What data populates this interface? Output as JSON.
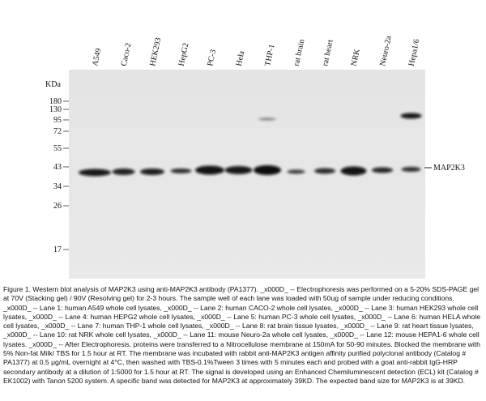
{
  "lanes": [
    "A549",
    "Caco-2",
    "HEK293",
    "HepG2",
    "PC-3",
    "Hela",
    "THP-1",
    "rat brain",
    "rat heart",
    "NRK",
    "Neuro-2a",
    "Hepa1/6"
  ],
  "unit": "KDa",
  "markers": [
    "180",
    "130",
    "95",
    "72",
    "55",
    "43",
    "34",
    "26",
    "17"
  ],
  "band_label": "MAP2K3",
  "caption": "Figure 1. Western blot analysis of MAP2K3 using anti-MAP2K3 antibody (PA1377). _x000D_ -- Electrophoresis was performed on a 5-20% SDS-PAGE gel at 70V (Stacking gel) / 90V (Resolving gel) for 2-3 hours. The sample well of each lane was loaded with 50ug of sample under reducing conditions. _x000D_ -- Lane 1: human A549 whole cell lysates, _x000D_ -- Lane 2: human CACO-2 whole cell lysates, _x000D_ -- Lane 3: human HEK293 whole cell lysates, _x000D_ -- Lane 4: human HEPG2 whole cell lysates, _x000D_ -- Lane 5: human PC-3 whole cell lysates, _x000D_ -- Lane 6: human HELA whole cell lysates, _x000D_ -- Lane 7: human THP-1 whole cell lysates, _x000D_ -- Lane 8: rat brain tissue lysates, _x000D_ -- Lane 9: rat heart tissue lysates, _x000D_ -- Lane 10: rat NRK whole cell lysates, _x000D_ -- Lane 11: mouse Neuro-2a whole cell lysates, _x000D_ -- Lane 12: mouse HEPA1-6 whole cell lysates. _x000D_ -- After Electrophoresis, proteins were transferred to a Nitrocellulose membrane at 150mA for 50-90 minutes. Blocked the membrane with 5% Non-fat Milk/ TBS for 1.5 hour at RT. The membrane was incubated with rabbit anti-MAP2K3 antigen affinity purified polyclonal antibody (Catalog # PA1377) at 0.5 μg/mL overnight at 4°C, then washed with TBS-0.1%Tween 3 times with 5 minutes each and probed with a goat anti-rabbit IgG-HRP secondary antibody at a dilution of 1:5000 for 1.5 hour at RT. The signal is developed using an Enhanced Chemiluminescent detection (ECL) kit (Catalog # EK1002) with Tanon 5200 system. A specific band was detected for MAP2K3 at approximately 39KD. The expected band size for MAP2K3 is at 39KD."
}
